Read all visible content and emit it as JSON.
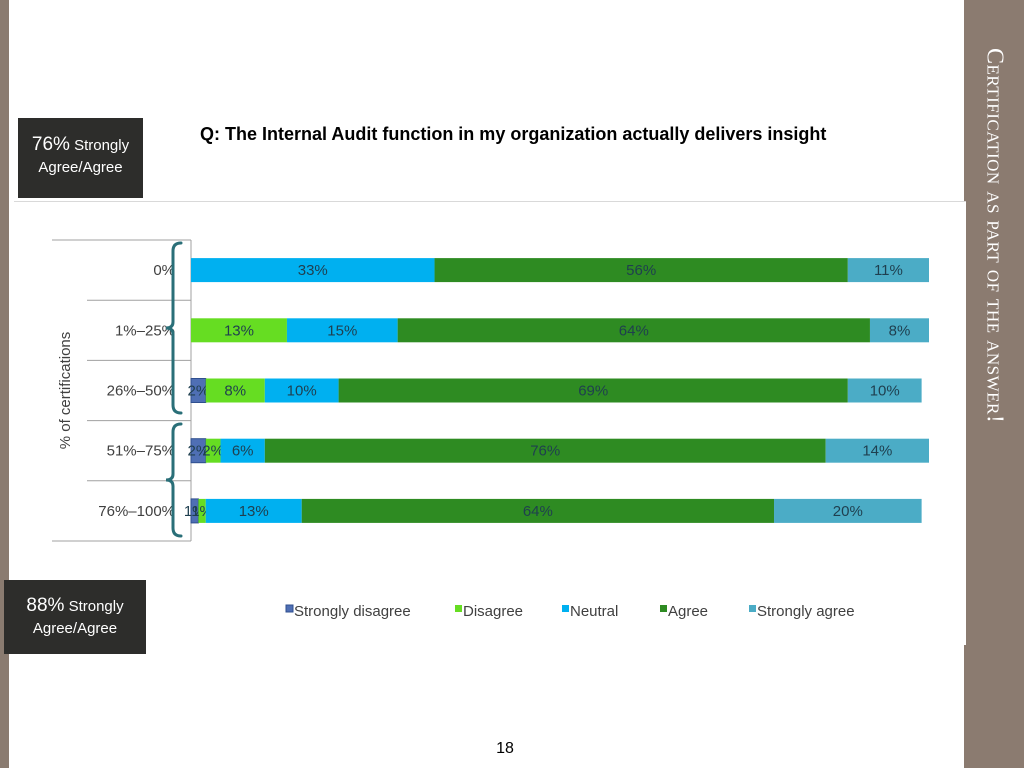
{
  "slide": {
    "side_title": "Certification as part of the answer!",
    "question": "Q:  The Internal Audit function in my organization actually delivers insight",
    "page_number": "18",
    "callouts": [
      {
        "percent": "76%",
        "text": "Strongly Agree/Agree"
      },
      {
        "percent": "88%",
        "text": "Strongly Agree/Agree"
      }
    ],
    "colors": {
      "side_band": "#8b7b70",
      "callout_bg": "#2d2d2b"
    }
  },
  "chart_data": {
    "type": "bar",
    "orientation": "horizontal",
    "stacked": true,
    "percent_stacked": true,
    "ylabel": "% of certifications",
    "xlabel": "",
    "xlim": [
      0,
      100
    ],
    "categories": [
      "0%",
      "1%–25%",
      "26%–50%",
      "51%–75%",
      "76%–100%"
    ],
    "series": [
      {
        "name": "Strongly disagree",
        "color": "#4f6fb4",
        "values": [
          0,
          0,
          2,
          2,
          1
        ],
        "labels": [
          "",
          "",
          "2%",
          "2%",
          "1%"
        ]
      },
      {
        "name": "Disagree",
        "color": "#66dd22",
        "values": [
          0,
          13,
          8,
          2,
          1
        ],
        "labels": [
          "",
          "13%",
          "8%",
          "2%",
          "1%"
        ]
      },
      {
        "name": "Neutral",
        "color": "#00b0f0",
        "values": [
          33,
          15,
          10,
          6,
          13
        ],
        "labels": [
          "33%",
          "15%",
          "10%",
          "6%",
          "13%"
        ]
      },
      {
        "name": "Agree",
        "color": "#2e8b22",
        "values": [
          56,
          64,
          69,
          76,
          64
        ],
        "labels": [
          "56%",
          "64%",
          "69%",
          "76%",
          "64%"
        ]
      },
      {
        "name": "Strongly agree",
        "color": "#4bacc6",
        "values": [
          11,
          8,
          10,
          14,
          20
        ],
        "labels": [
          "11%",
          "8%",
          "10%",
          "14%",
          "20%"
        ]
      }
    ],
    "legend": "bottom",
    "grid": false
  }
}
